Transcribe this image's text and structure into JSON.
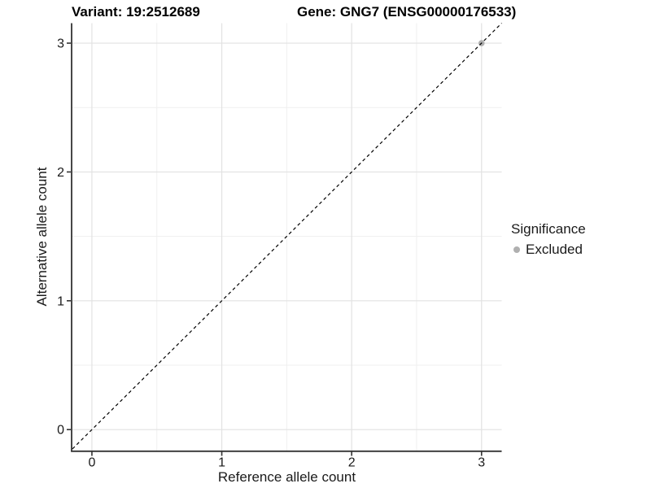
{
  "chart_data": {
    "type": "scatter",
    "title_left": "Variant: 19:2512689",
    "title_right": "Gene: GNG7 (ENSG00000176533)",
    "xlabel": "Reference allele count",
    "ylabel": "Alternative allele count",
    "xlim": [
      -0.15,
      3.155
    ],
    "ylim": [
      -0.163,
      3.155
    ],
    "x_ticks": [
      0,
      1,
      2,
      3
    ],
    "y_ticks": [
      0,
      1,
      2,
      3
    ],
    "x_minor_ticks": [
      0.5,
      1.5,
      2.5
    ],
    "y_minor_ticks": [
      0.5,
      1.5,
      2.5
    ],
    "grid": true,
    "reference_line": {
      "type": "identity",
      "slope": 1,
      "intercept": 0,
      "style": "dashed",
      "color": "#000000"
    },
    "points": [
      {
        "x": 3,
        "y": 3,
        "series": "Excluded"
      }
    ],
    "legend": {
      "title": "Significance",
      "position": "right",
      "items": [
        {
          "label": "Excluded",
          "color": "#B0B0B0"
        }
      ]
    }
  },
  "colors": {
    "background": "#FFFFFF",
    "grid_major": "#E2E2E2",
    "grid_minor": "#EFEFEF",
    "axis_line": "#333333",
    "tick_mark": "#333333",
    "tick_label": "#1A1A1A",
    "point": "#B0B0B0"
  }
}
